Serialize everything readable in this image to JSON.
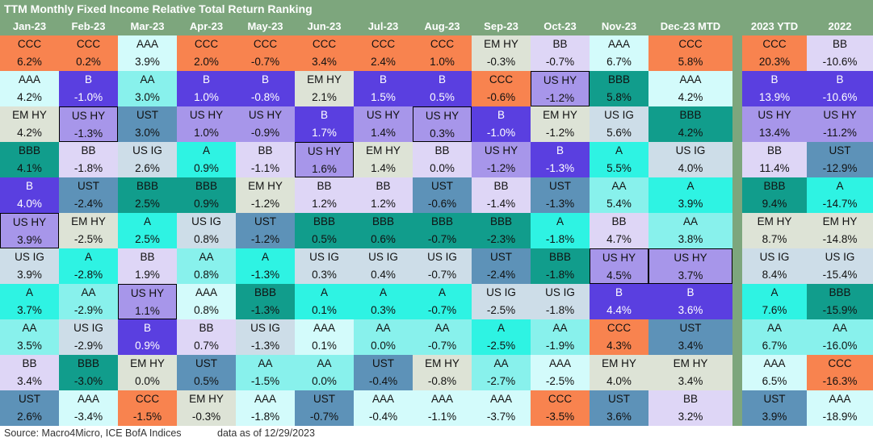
{
  "title": "TTM Monthly Fixed Income Relative Total Return Ranking",
  "footer": {
    "source": "Source: Macro4Micro, ICE BofA Indices",
    "as_of": "data as of 12/29/2023"
  },
  "colors": {
    "CCC": "#f8834f",
    "B": "#5a3fe0",
    "EM HY": "#dde3d6",
    "BB": "#ded6f6",
    "AAA": "#d3fbfb",
    "BBB": "#119d8c",
    "US HY": "#a796ea",
    "UST": "#5d92b8",
    "US IG": "#cddde8",
    "A": "#2ef3e3",
    "AA": "#88f1ec",
    "header_bg": "#7da67d",
    "header_text": "#ffffff"
  },
  "chart_data": {
    "type": "table",
    "title": "TTM Monthly Fixed Income Relative Total Return Ranking",
    "columns": [
      "Jan-23",
      "Feb-23",
      "Mar-23",
      "Apr-23",
      "May-23",
      "Jun-23",
      "Jul-23",
      "Aug-23",
      "Sep-23",
      "Oct-23",
      "Nov-23",
      "Dec-23 MTD",
      "2023 YTD",
      "2022"
    ],
    "ranks": [
      [
        {
          "n": "CCC",
          "v": "6.2%"
        },
        {
          "n": "CCC",
          "v": "0.2%"
        },
        {
          "n": "AAA",
          "v": "3.9%"
        },
        {
          "n": "CCC",
          "v": "2.0%"
        },
        {
          "n": "CCC",
          "v": "-0.7%"
        },
        {
          "n": "CCC",
          "v": "3.4%"
        },
        {
          "n": "CCC",
          "v": "2.4%"
        },
        {
          "n": "CCC",
          "v": "1.0%"
        },
        {
          "n": "EM HY",
          "v": "-0.3%"
        },
        {
          "n": "BB",
          "v": "-0.7%"
        },
        {
          "n": "AAA",
          "v": "6.7%"
        },
        {
          "n": "CCC",
          "v": "5.8%"
        },
        {
          "n": "CCC",
          "v": "20.3%"
        },
        {
          "n": "BB",
          "v": "-10.6%"
        }
      ],
      [
        {
          "n": "AAA",
          "v": "4.2%"
        },
        {
          "n": "B",
          "v": "-1.0%"
        },
        {
          "n": "AA",
          "v": "3.0%"
        },
        {
          "n": "B",
          "v": "1.0%"
        },
        {
          "n": "B",
          "v": "-0.8%"
        },
        {
          "n": "EM HY",
          "v": "2.1%"
        },
        {
          "n": "B",
          "v": "1.5%"
        },
        {
          "n": "B",
          "v": "0.5%"
        },
        {
          "n": "CCC",
          "v": "-0.6%"
        },
        {
          "n": "US HY",
          "v": "-1.2%",
          "box": true
        },
        {
          "n": "BBB",
          "v": "5.8%"
        },
        {
          "n": "AAA",
          "v": "4.2%"
        },
        {
          "n": "B",
          "v": "13.9%"
        },
        {
          "n": "B",
          "v": "-10.6%"
        }
      ],
      [
        {
          "n": "EM HY",
          "v": "4.2%"
        },
        {
          "n": "US HY",
          "v": "-1.3%",
          "box": true
        },
        {
          "n": "UST",
          "v": "3.0%"
        },
        {
          "n": "US HY",
          "v": "1.0%"
        },
        {
          "n": "US HY",
          "v": "-0.9%"
        },
        {
          "n": "B",
          "v": "1.7%"
        },
        {
          "n": "US HY",
          "v": "1.4%"
        },
        {
          "n": "US HY",
          "v": "0.3%",
          "box": true
        },
        {
          "n": "B",
          "v": "-1.0%"
        },
        {
          "n": "EM HY",
          "v": "-1.2%"
        },
        {
          "n": "US IG",
          "v": "5.6%"
        },
        {
          "n": "BBB",
          "v": "4.2%"
        },
        {
          "n": "US HY",
          "v": "13.4%"
        },
        {
          "n": "US HY",
          "v": "-11.2%"
        }
      ],
      [
        {
          "n": "BBB",
          "v": "4.1%"
        },
        {
          "n": "BB",
          "v": "-1.8%"
        },
        {
          "n": "US IG",
          "v": "2.6%"
        },
        {
          "n": "A",
          "v": "0.9%"
        },
        {
          "n": "BB",
          "v": "-1.1%"
        },
        {
          "n": "US HY",
          "v": "1.6%",
          "box": true
        },
        {
          "n": "EM HY",
          "v": "1.4%"
        },
        {
          "n": "BB",
          "v": "0.0%"
        },
        {
          "n": "US HY",
          "v": "-1.2%"
        },
        {
          "n": "B",
          "v": "-1.3%"
        },
        {
          "n": "A",
          "v": "5.5%"
        },
        {
          "n": "US IG",
          "v": "4.0%"
        },
        {
          "n": "BB",
          "v": "11.4%"
        },
        {
          "n": "UST",
          "v": "-12.9%"
        }
      ],
      [
        {
          "n": "B",
          "v": "4.0%"
        },
        {
          "n": "UST",
          "v": "-2.4%"
        },
        {
          "n": "BBB",
          "v": "2.5%"
        },
        {
          "n": "BBB",
          "v": "0.9%"
        },
        {
          "n": "EM HY",
          "v": "-1.2%"
        },
        {
          "n": "BB",
          "v": "1.2%"
        },
        {
          "n": "BB",
          "v": "1.2%"
        },
        {
          "n": "UST",
          "v": "-0.6%"
        },
        {
          "n": "BB",
          "v": "-1.4%"
        },
        {
          "n": "UST",
          "v": "-1.3%"
        },
        {
          "n": "AA",
          "v": "5.4%"
        },
        {
          "n": "A",
          "v": "3.9%"
        },
        {
          "n": "BBB",
          "v": "9.4%"
        },
        {
          "n": "A",
          "v": "-14.7%"
        }
      ],
      [
        {
          "n": "US HY",
          "v": "3.9%",
          "box": true
        },
        {
          "n": "EM HY",
          "v": "-2.5%"
        },
        {
          "n": "A",
          "v": "2.5%"
        },
        {
          "n": "US IG",
          "v": "0.8%"
        },
        {
          "n": "UST",
          "v": "-1.2%"
        },
        {
          "n": "BBB",
          "v": "0.5%"
        },
        {
          "n": "BBB",
          "v": "0.6%"
        },
        {
          "n": "BBB",
          "v": "-0.7%"
        },
        {
          "n": "BBB",
          "v": "-2.3%"
        },
        {
          "n": "A",
          "v": "-1.8%"
        },
        {
          "n": "BB",
          "v": "4.7%"
        },
        {
          "n": "AA",
          "v": "3.8%"
        },
        {
          "n": "EM HY",
          "v": "8.7%"
        },
        {
          "n": "EM HY",
          "v": "-14.8%"
        }
      ],
      [
        {
          "n": "US IG",
          "v": "3.9%"
        },
        {
          "n": "A",
          "v": "-2.8%"
        },
        {
          "n": "BB",
          "v": "1.9%"
        },
        {
          "n": "AA",
          "v": "0.8%"
        },
        {
          "n": "A",
          "v": "-1.3%"
        },
        {
          "n": "US IG",
          "v": "0.3%"
        },
        {
          "n": "US IG",
          "v": "0.4%"
        },
        {
          "n": "US IG",
          "v": "-0.7%"
        },
        {
          "n": "UST",
          "v": "-2.4%"
        },
        {
          "n": "BBB",
          "v": "-1.8%"
        },
        {
          "n": "US HY",
          "v": "4.5%",
          "box": true
        },
        {
          "n": "US HY",
          "v": "3.7%",
          "box": true
        },
        {
          "n": "US IG",
          "v": "8.4%"
        },
        {
          "n": "US IG",
          "v": "-15.4%"
        }
      ],
      [
        {
          "n": "A",
          "v": "3.7%"
        },
        {
          "n": "AA",
          "v": "-2.9%"
        },
        {
          "n": "US HY",
          "v": "1.1%",
          "box": true
        },
        {
          "n": "AAA",
          "v": "0.8%"
        },
        {
          "n": "BBB",
          "v": "-1.3%"
        },
        {
          "n": "A",
          "v": "0.1%"
        },
        {
          "n": "A",
          "v": "0.3%"
        },
        {
          "n": "A",
          "v": "-0.7%"
        },
        {
          "n": "US IG",
          "v": "-2.5%"
        },
        {
          "n": "US IG",
          "v": "-1.8%"
        },
        {
          "n": "B",
          "v": "4.4%"
        },
        {
          "n": "B",
          "v": "3.6%"
        },
        {
          "n": "A",
          "v": "7.6%"
        },
        {
          "n": "BBB",
          "v": "-15.9%"
        }
      ],
      [
        {
          "n": "AA",
          "v": "3.5%"
        },
        {
          "n": "US IG",
          "v": "-2.9%"
        },
        {
          "n": "B",
          "v": "0.9%"
        },
        {
          "n": "BB",
          "v": "0.7%"
        },
        {
          "n": "US IG",
          "v": "-1.3%"
        },
        {
          "n": "AAA",
          "v": "0.1%"
        },
        {
          "n": "AA",
          "v": "0.0%"
        },
        {
          "n": "AA",
          "v": "-0.7%"
        },
        {
          "n": "A",
          "v": "-2.5%"
        },
        {
          "n": "AA",
          "v": "-1.9%"
        },
        {
          "n": "CCC",
          "v": "4.3%"
        },
        {
          "n": "UST",
          "v": "3.4%"
        },
        {
          "n": "AA",
          "v": "6.7%"
        },
        {
          "n": "AA",
          "v": "-16.0%"
        }
      ],
      [
        {
          "n": "BB",
          "v": "3.4%"
        },
        {
          "n": "BBB",
          "v": "-3.0%"
        },
        {
          "n": "EM HY",
          "v": "0.0%"
        },
        {
          "n": "UST",
          "v": "0.5%"
        },
        {
          "n": "AA",
          "v": "-1.5%"
        },
        {
          "n": "AA",
          "v": "0.0%"
        },
        {
          "n": "UST",
          "v": "-0.4%"
        },
        {
          "n": "EM HY",
          "v": "-0.8%"
        },
        {
          "n": "AA",
          "v": "-2.7%"
        },
        {
          "n": "AAA",
          "v": "-2.5%"
        },
        {
          "n": "EM HY",
          "v": "4.0%"
        },
        {
          "n": "EM HY",
          "v": "3.4%"
        },
        {
          "n": "AAA",
          "v": "6.5%"
        },
        {
          "n": "CCC",
          "v": "-16.3%"
        }
      ],
      [
        {
          "n": "UST",
          "v": "2.6%"
        },
        {
          "n": "AAA",
          "v": "-3.4%"
        },
        {
          "n": "CCC",
          "v": "-1.5%"
        },
        {
          "n": "EM HY",
          "v": "-0.3%"
        },
        {
          "n": "AAA",
          "v": "-1.8%"
        },
        {
          "n": "UST",
          "v": "-0.7%"
        },
        {
          "n": "AAA",
          "v": "-0.4%"
        },
        {
          "n": "AAA",
          "v": "-1.1%"
        },
        {
          "n": "AAA",
          "v": "-3.7%"
        },
        {
          "n": "CCC",
          "v": "-3.5%"
        },
        {
          "n": "UST",
          "v": "3.6%"
        },
        {
          "n": "BB",
          "v": "3.2%"
        },
        {
          "n": "UST",
          "v": "3.9%"
        },
        {
          "n": "AAA",
          "v": "-18.9%"
        }
      ]
    ]
  }
}
